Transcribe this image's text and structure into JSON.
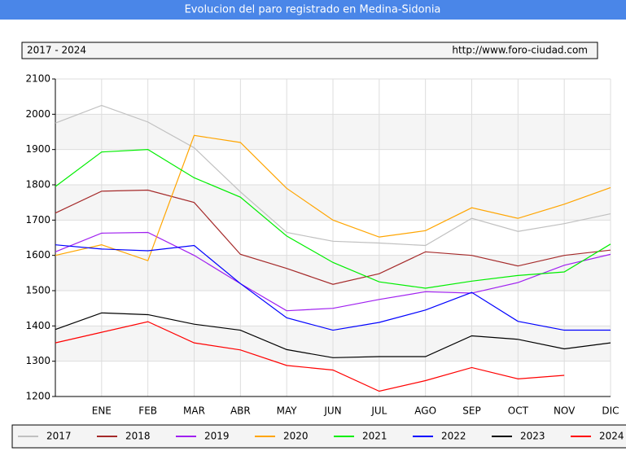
{
  "chart_data": {
    "type": "line",
    "title": "Evolucion del paro registrado en Medina-Sidonia",
    "subtitle": "2017 - 2024",
    "source": "http://www.foro-ciudad.com",
    "categories": [
      null,
      "ENE",
      "FEB",
      "MAR",
      "ABR",
      "MAY",
      "JUN",
      "JUL",
      "AGO",
      "SEP",
      "OCT",
      "NOV",
      "DIC"
    ],
    "series": [
      {
        "name": "2017",
        "color": "#c0c0c0",
        "values": [
          1975,
          2025,
          1978,
          1905,
          1780,
          1665,
          1640,
          1635,
          1628,
          1705,
          1668,
          1690,
          1718
        ]
      },
      {
        "name": "2018",
        "color": "#a52a2a",
        "values": [
          1720,
          1782,
          1785,
          1750,
          1603,
          1563,
          1518,
          1548,
          1610,
          1600,
          1570,
          1600,
          1615
        ]
      },
      {
        "name": "2019",
        "color": "#a020f0",
        "values": [
          1610,
          1663,
          1665,
          1600,
          1520,
          1443,
          1450,
          1475,
          1497,
          1493,
          1523,
          1572,
          1603
        ]
      },
      {
        "name": "2020",
        "color": "#ffa500",
        "values": [
          1600,
          1630,
          1585,
          1940,
          1920,
          1790,
          1700,
          1652,
          1670,
          1735,
          1705,
          1745,
          1792
        ]
      },
      {
        "name": "2021",
        "color": "#00ee00",
        "values": [
          1795,
          1893,
          1900,
          1820,
          1765,
          1655,
          1580,
          1525,
          1507,
          1527,
          1543,
          1553,
          1632
        ]
      },
      {
        "name": "2022",
        "color": "#0000ff",
        "values": [
          1630,
          1618,
          1613,
          1628,
          1520,
          1423,
          1388,
          1410,
          1445,
          1495,
          1413,
          1388,
          1388
        ]
      },
      {
        "name": "2023",
        "color": "#000000",
        "values": [
          1390,
          1437,
          1432,
          1405,
          1388,
          1333,
          1310,
          1313,
          1313,
          1372,
          1362,
          1335,
          1352
        ]
      },
      {
        "name": "2024",
        "color": "#ff0000",
        "values": [
          1352,
          1382,
          1412,
          1352,
          1332,
          1288,
          1275,
          1215,
          1245,
          1282,
          1250,
          1260,
          null
        ]
      }
    ],
    "ylim": [
      1200,
      2100
    ],
    "yticks": [
      1200,
      1300,
      1400,
      1500,
      1600,
      1700,
      1800,
      1900,
      2000,
      2100
    ],
    "grid": true
  }
}
